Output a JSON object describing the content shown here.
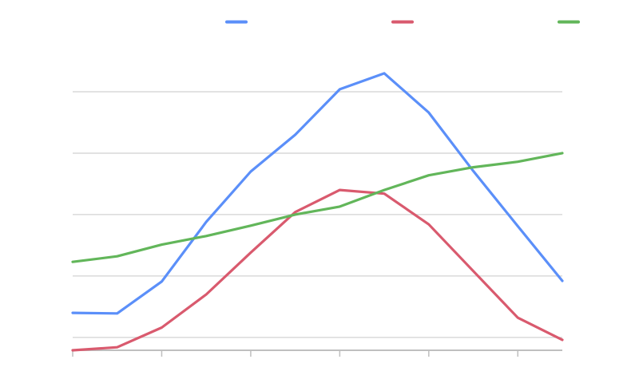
{
  "chart_data": {
    "type": "line",
    "title": "",
    "xlabel": "",
    "ylabel": "",
    "x": [
      0,
      1,
      2,
      3,
      4,
      5,
      6,
      7,
      8,
      9,
      10,
      11
    ],
    "xlim": [
      0,
      11
    ],
    "ylim": [
      -0.21,
      4.5
    ],
    "y_gridlines": [
      0,
      1,
      2,
      3,
      4
    ],
    "x_ticks": [
      0,
      2,
      4,
      6,
      8,
      10
    ],
    "grid": true,
    "legend": "top",
    "series": [
      {
        "color": "#5b8ff9",
        "values": [
          0.4,
          0.39,
          0.91,
          1.88,
          2.7,
          3.3,
          4.04,
          4.3,
          3.66,
          2.71,
          1.81,
          0.92
        ]
      },
      {
        "color": "#d95a6e",
        "values": [
          -0.21,
          -0.16,
          0.16,
          0.7,
          1.38,
          2.04,
          2.4,
          2.34,
          1.84,
          1.08,
          0.32,
          -0.04
        ]
      },
      {
        "color": "#62b65a",
        "values": [
          1.23,
          1.32,
          1.51,
          1.65,
          1.82,
          2.0,
          2.13,
          2.4,
          2.64,
          2.77,
          2.86,
          3.0
        ]
      }
    ]
  }
}
